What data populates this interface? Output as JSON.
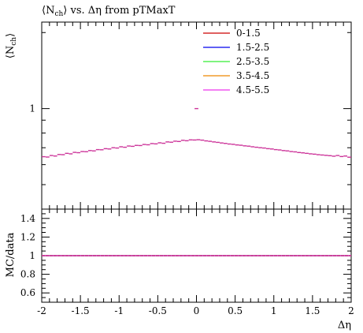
{
  "chart_data": [
    {
      "type": "scatter",
      "title": "⟨N_ch⟩ vs. Δη from pTMaxT",
      "title_parts": {
        "prefix": "⟨N",
        "sub": "ch",
        "suffix": "⟩ vs. Δη from pTMaxT"
      },
      "ylabel": "⟨N_ch⟩",
      "ylabel_parts": {
        "prefix": "⟨N",
        "sub": "ch",
        "suffix": "⟩"
      },
      "yscale": "log",
      "ylim": [
        0.4,
        2.2
      ],
      "ytick_labels": [
        {
          "value": 1,
          "label": "1"
        }
      ],
      "xlim": [
        -2,
        2
      ],
      "legend": {
        "placement": "top-right"
      },
      "series": [
        {
          "name": "0-1.5",
          "color": "#cc0000"
        },
        {
          "name": "1.5-2.5",
          "color": "#0000ee"
        },
        {
          "name": "2.5-3.5",
          "color": "#33ee33"
        },
        {
          "name": "3.5-4.5",
          "color": "#ee8800"
        },
        {
          "name": "4.5-5.5",
          "color": "#ee33ee"
        }
      ],
      "points": {
        "color": "#cc3399",
        "x": [
          -1.975,
          -1.925,
          -1.875,
          -1.825,
          -1.775,
          -1.725,
          -1.675,
          -1.625,
          -1.575,
          -1.525,
          -1.475,
          -1.425,
          -1.375,
          -1.325,
          -1.275,
          -1.225,
          -1.175,
          -1.125,
          -1.075,
          -1.025,
          -0.975,
          -0.925,
          -0.875,
          -0.825,
          -0.775,
          -0.725,
          -0.675,
          -0.625,
          -0.575,
          -0.525,
          -0.475,
          -0.425,
          -0.375,
          -0.325,
          -0.275,
          -0.225,
          -0.175,
          -0.125,
          -0.075,
          -0.025,
          0.025,
          0.075,
          0.125,
          0.175,
          0.225,
          0.275,
          0.325,
          0.375,
          0.425,
          0.475,
          0.525,
          0.575,
          0.625,
          0.675,
          0.725,
          0.775,
          0.825,
          0.875,
          0.925,
          0.975,
          1.025,
          1.075,
          1.125,
          1.175,
          1.225,
          1.275,
          1.325,
          1.375,
          1.425,
          1.475,
          1.525,
          1.575,
          1.625,
          1.675,
          1.725,
          1.775,
          1.825,
          1.875,
          1.925,
          1.975
        ],
        "y": [
          0.645,
          0.643,
          0.652,
          0.649,
          0.658,
          0.657,
          0.665,
          0.662,
          0.671,
          0.669,
          0.676,
          0.675,
          0.682,
          0.68,
          0.688,
          0.687,
          0.694,
          0.692,
          0.7,
          0.698,
          0.706,
          0.703,
          0.711,
          0.709,
          0.715,
          0.714,
          0.721,
          0.719,
          0.727,
          0.725,
          0.732,
          0.729,
          0.738,
          0.736,
          0.743,
          0.741,
          0.749,
          0.746,
          0.752,
          0.751,
          0.753,
          0.75,
          0.745,
          0.742,
          0.738,
          0.735,
          0.731,
          0.728,
          0.724,
          0.722,
          0.718,
          0.716,
          0.712,
          0.71,
          0.706,
          0.703,
          0.7,
          0.698,
          0.694,
          0.692,
          0.688,
          0.686,
          0.682,
          0.68,
          0.676,
          0.674,
          0.67,
          0.668,
          0.665,
          0.662,
          0.66,
          0.657,
          0.655,
          0.653,
          0.651,
          0.648,
          0.652,
          0.646,
          0.649,
          0.642
        ]
      },
      "outlier": {
        "x": 0.0,
        "y": 1.0
      }
    },
    {
      "type": "line",
      "ylabel": "MC/data",
      "xlabel": "Δη",
      "xlim": [
        -2,
        2
      ],
      "ylim": [
        0.5,
        1.5
      ],
      "xticks": [
        {
          "value": -2,
          "label": "-2"
        },
        {
          "value": -1.5,
          "label": "-1.5"
        },
        {
          "value": -1,
          "label": "-1"
        },
        {
          "value": -0.5,
          "label": "-0.5"
        },
        {
          "value": 0,
          "label": "0"
        },
        {
          "value": 0.5,
          "label": "0.5"
        },
        {
          "value": 1,
          "label": "1"
        },
        {
          "value": 1.5,
          "label": "1.5"
        },
        {
          "value": 2,
          "label": "2"
        }
      ],
      "yticks": [
        {
          "value": 0.6,
          "label": "0.6"
        },
        {
          "value": 0.8,
          "label": "0.8"
        },
        {
          "value": 1,
          "label": "1"
        },
        {
          "value": 1.2,
          "label": "1.2"
        },
        {
          "value": 1.4,
          "label": "1.4"
        }
      ],
      "reference_value": 1.0,
      "ratio_color": "#cc3399"
    }
  ]
}
